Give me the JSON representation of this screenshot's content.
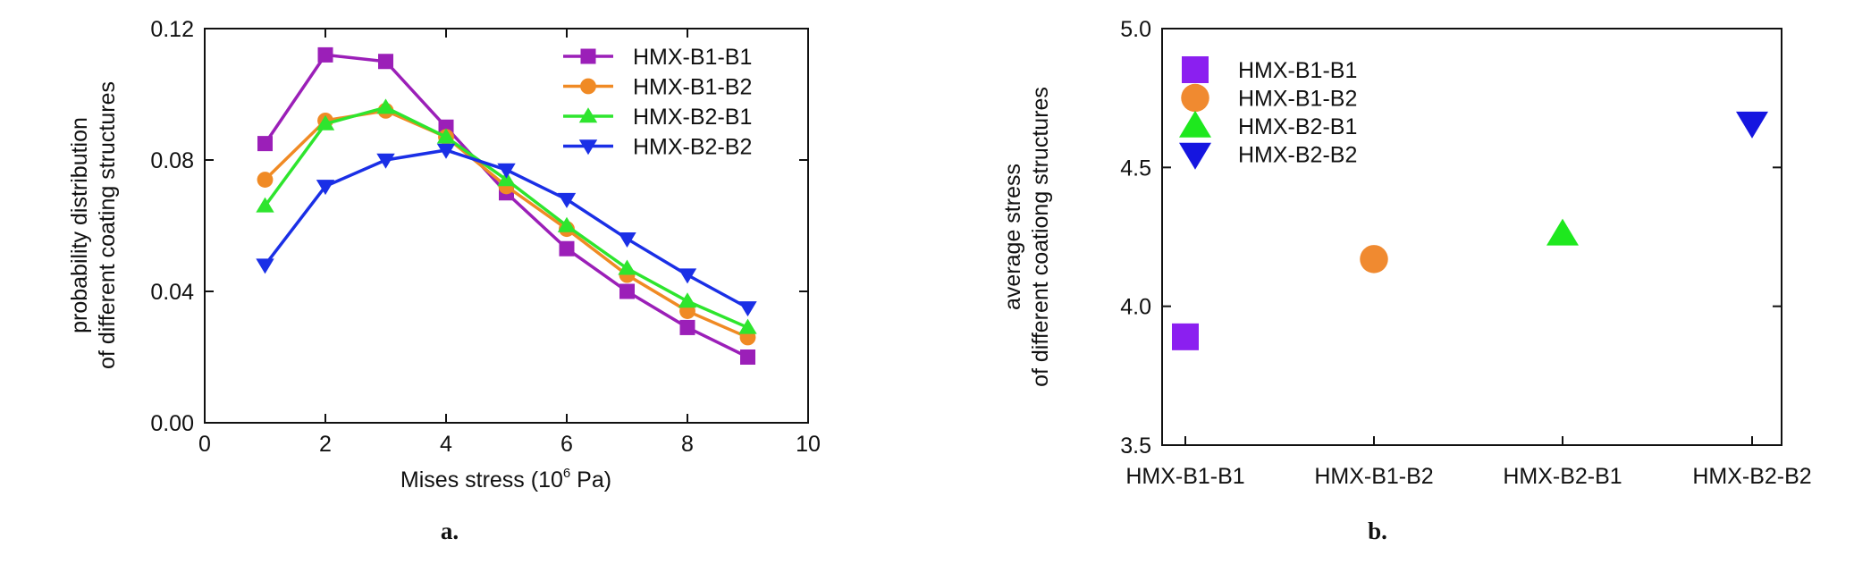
{
  "chart_data": [
    {
      "type": "line",
      "panel_label": "a.",
      "xlabel_main": "Mises stress (10",
      "xlabel_exp": "6",
      "xlabel_unit": " Pa)",
      "ylabel_line1": "probability distribution",
      "ylabel_line2": "of different coating structures",
      "xlim": [
        0,
        10
      ],
      "ylim": [
        0,
        0.12
      ],
      "x_ticks": [
        0,
        2,
        4,
        6,
        8,
        10
      ],
      "x_tick_labels": [
        "0",
        "2",
        "4",
        "6",
        "8",
        "10"
      ],
      "y_ticks": [
        0,
        0.04,
        0.08,
        0.12
      ],
      "y_tick_labels": [
        "0.00",
        "0.04",
        "0.08",
        "0.12"
      ],
      "legend_position": "top-right",
      "x": [
        1,
        2,
        3,
        4,
        5,
        6,
        7,
        8,
        9
      ],
      "series": [
        {
          "name": "HMX-B1-B1",
          "color": "#9b1fb8",
          "marker": "square",
          "values": [
            0.085,
            0.112,
            0.11,
            0.09,
            0.07,
            0.053,
            0.04,
            0.029,
            0.02
          ]
        },
        {
          "name": "HMX-B1-B2",
          "color": "#f08a24",
          "marker": "circle",
          "values": [
            0.074,
            0.092,
            0.095,
            0.087,
            0.072,
            0.059,
            0.045,
            0.034,
            0.026
          ]
        },
        {
          "name": "HMX-B2-B1",
          "color": "#2ee52e",
          "marker": "triangle-up",
          "values": [
            0.066,
            0.091,
            0.096,
            0.087,
            0.074,
            0.06,
            0.047,
            0.037,
            0.029
          ]
        },
        {
          "name": "HMX-B2-B2",
          "color": "#1a2fe6",
          "marker": "triangle-down",
          "values": [
            0.048,
            0.072,
            0.08,
            0.083,
            0.077,
            0.068,
            0.056,
            0.045,
            0.035
          ]
        }
      ]
    },
    {
      "type": "scatter",
      "panel_label": "b.",
      "ylabel_line1": "average stress",
      "ylabel_line2": "of different coationg structures",
      "ylim": [
        3.5,
        5.0
      ],
      "y_ticks": [
        3.5,
        4.0,
        4.5,
        5.0
      ],
      "y_tick_labels": [
        "3.5",
        "4.0",
        "4.5",
        "5.0"
      ],
      "categories": [
        "HMX-B1-B1",
        "HMX-B1-B2",
        "HMX-B2-B1",
        "HMX-B2-B2"
      ],
      "legend_position": "top-left",
      "series": [
        {
          "name": "HMX-B1-B1",
          "color": "#8b1ff0",
          "marker": "square",
          "value": 3.89
        },
        {
          "name": "HMX-B1-B2",
          "color": "#f08a30",
          "marker": "circle",
          "value": 4.17
        },
        {
          "name": "HMX-B2-B1",
          "color": "#1ee81e",
          "marker": "triangle-up",
          "value": 4.26
        },
        {
          "name": "HMX-B2-B2",
          "color": "#1515e0",
          "marker": "triangle-down",
          "value": 4.66
        }
      ]
    }
  ]
}
